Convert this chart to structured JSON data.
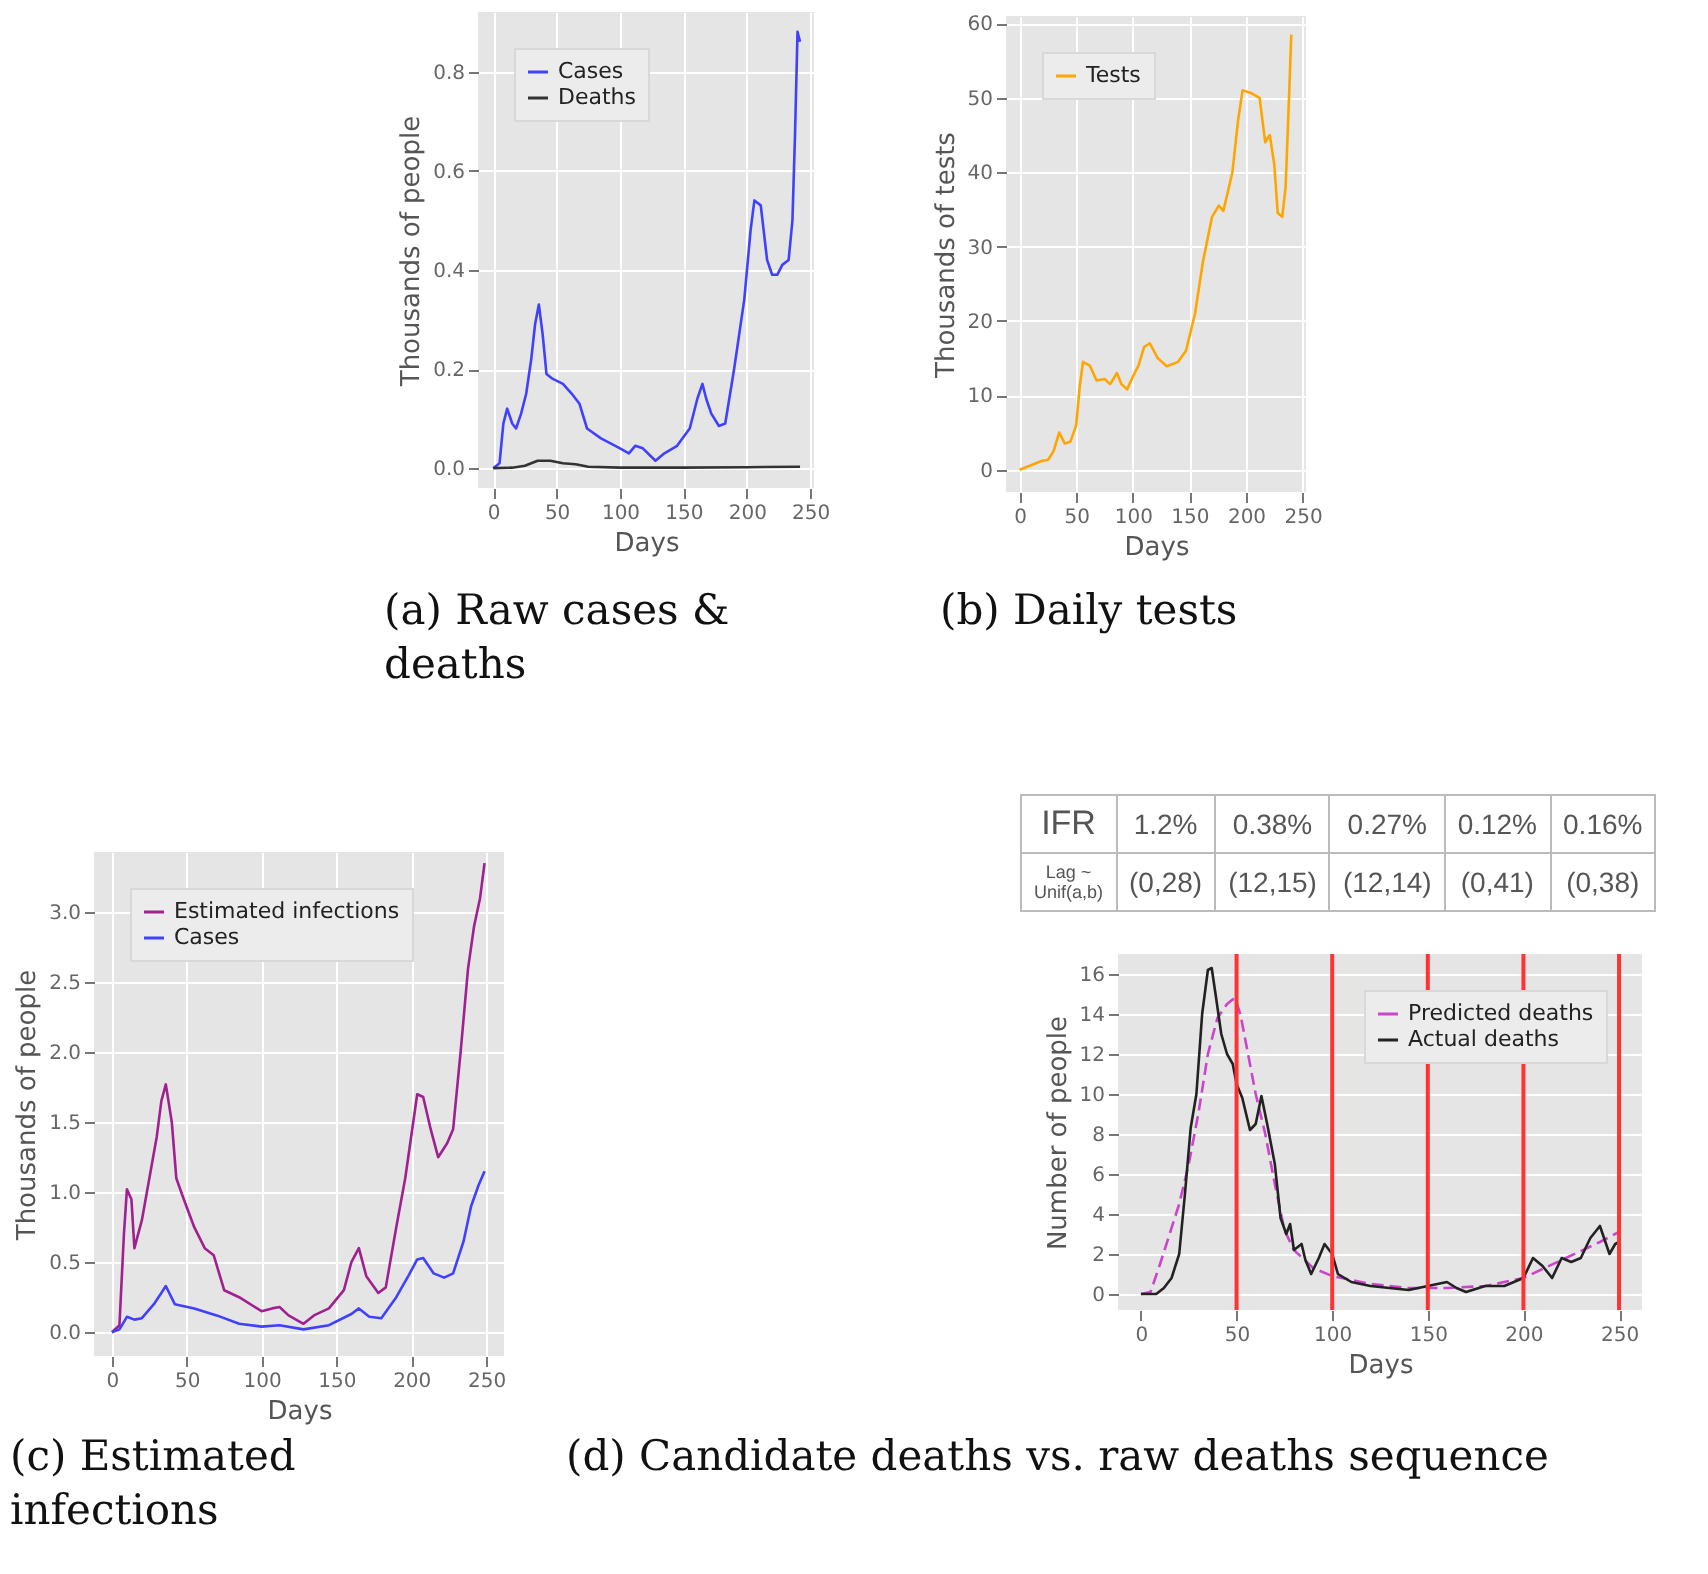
{
  "chart_data": [
    {
      "type": "line",
      "title": "(a) Raw cases & deaths",
      "xlabel": "Days",
      "ylabel": "Thousands of people",
      "xlim": [
        -12,
        253
      ],
      "xticks": [
        0,
        50,
        100,
        150,
        200,
        250
      ],
      "ylim": [
        -0.04,
        0.92
      ],
      "yticks": [
        {
          "value": 0,
          "label": "0.0"
        },
        {
          "value": 0.2,
          "label": "0.2"
        },
        {
          "value": 0.4,
          "label": "0.4"
        },
        {
          "value": 0.6,
          "label": "0.6"
        },
        {
          "value": 0.8,
          "label": "0.8"
        }
      ],
      "grid": true,
      "legend": "top left",
      "series": [
        {
          "name": "Cases",
          "color": "#4040ff",
          "x": [
            0,
            5,
            8,
            11,
            15,
            18,
            22,
            26,
            30,
            33,
            36,
            39,
            42,
            47,
            55,
            62,
            68,
            74,
            85,
            100,
            107,
            112,
            118,
            128,
            135,
            145,
            155,
            161,
            165,
            168,
            172,
            178,
            183,
            190,
            198,
            203,
            206,
            211,
            216,
            220,
            224,
            228,
            233,
            236,
            238,
            240,
            242
          ],
          "values": [
            0,
            0.01,
            0.09,
            0.12,
            0.09,
            0.08,
            0.11,
            0.15,
            0.22,
            0.29,
            0.33,
            0.27,
            0.19,
            0.18,
            0.17,
            0.15,
            0.13,
            0.08,
            0.06,
            0.04,
            0.03,
            0.045,
            0.04,
            0.015,
            0.03,
            0.045,
            0.08,
            0.14,
            0.17,
            0.14,
            0.11,
            0.085,
            0.09,
            0.2,
            0.34,
            0.48,
            0.54,
            0.53,
            0.42,
            0.39,
            0.39,
            0.41,
            0.42,
            0.5,
            0.67,
            0.88,
            0.86
          ]
        },
        {
          "name": "Deaths",
          "color": "#333333",
          "x": [
            0,
            15,
            25,
            35,
            45,
            55,
            65,
            75,
            100,
            150,
            200,
            242
          ],
          "values": [
            0,
            0.001,
            0.005,
            0.015,
            0.015,
            0.01,
            0.008,
            0.003,
            0.001,
            0.001,
            0.002,
            0.003
          ]
        }
      ]
    },
    {
      "type": "line",
      "title": "(b) Daily tests",
      "xlabel": "Days",
      "ylabel": "Thousands of tests",
      "xlim": [
        -12,
        253
      ],
      "xticks": [
        0,
        50,
        100,
        150,
        200,
        250
      ],
      "ylim": [
        -3,
        61
      ],
      "yticks": [
        0,
        10,
        20,
        30,
        40,
        50,
        60
      ],
      "grid": true,
      "legend": "top left",
      "series": [
        {
          "name": "Tests",
          "color": "#ffa500",
          "x": [
            0,
            10,
            20,
            25,
            30,
            35,
            40,
            45,
            50,
            53,
            56,
            62,
            68,
            75,
            80,
            86,
            90,
            95,
            100,
            105,
            110,
            115,
            122,
            130,
            140,
            147,
            155,
            162,
            170,
            176,
            180,
            188,
            193,
            197,
            205,
            212,
            217,
            221,
            225,
            228,
            232,
            235,
            238,
            240
          ],
          "values": [
            0,
            0.6,
            1.2,
            1.3,
            2.5,
            5,
            3.5,
            3.8,
            6,
            11,
            14.5,
            14,
            12,
            12.2,
            11.5,
            13,
            11.5,
            10.8,
            12.5,
            14,
            16.5,
            17,
            15,
            13.9,
            14.5,
            16,
            21,
            28,
            34,
            35.5,
            34.8,
            40,
            47,
            51,
            50.6,
            50,
            44,
            45,
            41,
            34.5,
            34,
            38,
            50,
            58.5
          ]
        }
      ]
    },
    {
      "type": "line",
      "title": "(c) Estimated infections",
      "xlabel": "Days",
      "ylabel": "Thousands of people",
      "xlim": [
        -12,
        262
      ],
      "xticks": [
        0,
        50,
        100,
        150,
        200,
        250
      ],
      "ylim": [
        -0.17,
        3.43
      ],
      "yticks": [
        {
          "value": 0,
          "label": "0.0"
        },
        {
          "value": 0.5,
          "label": "0.5"
        },
        {
          "value": 1,
          "label": "1.0"
        },
        {
          "value": 1.5,
          "label": "1.5"
        },
        {
          "value": 2,
          "label": "2.0"
        },
        {
          "value": 2.5,
          "label": "2.5"
        },
        {
          "value": 3,
          "label": "3.0"
        }
      ],
      "grid": true,
      "legend": "top left",
      "series": [
        {
          "name": "Estimated infections",
          "color": "#a0208f",
          "x": [
            0,
            5,
            8,
            10,
            13,
            15,
            20,
            25,
            30,
            33,
            36,
            40,
            43,
            48,
            55,
            62,
            68,
            75,
            85,
            100,
            107,
            112,
            118,
            128,
            135,
            145,
            155,
            160,
            165,
            170,
            178,
            183,
            190,
            196,
            200,
            204,
            208,
            213,
            218,
            224,
            228,
            233,
            238,
            242,
            246,
            249
          ],
          "values": [
            0,
            0.05,
            0.7,
            1.02,
            0.95,
            0.6,
            0.8,
            1.1,
            1.4,
            1.65,
            1.77,
            1.5,
            1.1,
            0.95,
            0.75,
            0.6,
            0.55,
            0.3,
            0.25,
            0.15,
            0.17,
            0.18,
            0.12,
            0.06,
            0.12,
            0.17,
            0.3,
            0.5,
            0.6,
            0.4,
            0.28,
            0.32,
            0.75,
            1.1,
            1.4,
            1.7,
            1.68,
            1.45,
            1.25,
            1.35,
            1.45,
            2.0,
            2.6,
            2.9,
            3.1,
            3.35
          ]
        },
        {
          "name": "Cases",
          "color": "#4040ff",
          "x": [
            0,
            5,
            10,
            15,
            20,
            28,
            33,
            36,
            42,
            55,
            70,
            85,
            100,
            112,
            128,
            145,
            160,
            165,
            172,
            180,
            190,
            198,
            204,
            208,
            215,
            222,
            228,
            235,
            240,
            245,
            249
          ],
          "values": [
            0,
            0.02,
            0.11,
            0.09,
            0.1,
            0.2,
            0.28,
            0.33,
            0.2,
            0.17,
            0.12,
            0.06,
            0.04,
            0.05,
            0.02,
            0.05,
            0.13,
            0.17,
            0.11,
            0.1,
            0.25,
            0.4,
            0.52,
            0.53,
            0.42,
            0.39,
            0.42,
            0.65,
            0.9,
            1.05,
            1.15
          ]
        }
      ]
    },
    {
      "type": "line",
      "title": "(d) Candidate deaths vs. raw deaths sequence",
      "xlabel": "Days",
      "ylabel": "Number of people",
      "xlim": [
        -12,
        262
      ],
      "xticks": [
        0,
        50,
        100,
        150,
        200,
        250
      ],
      "ylim": [
        -0.8,
        17
      ],
      "yticks": [
        0,
        2,
        4,
        6,
        8,
        10,
        12,
        14,
        16
      ],
      "grid": "y",
      "legend": "top right",
      "annotations": [
        "IFR",
        "1.2%",
        "0.38%",
        "0.27%",
        "0.12%",
        "0.16%",
        "Lag ~ Unif(a,b)",
        "(0,28)",
        "(12,15)",
        "(12,14)",
        "(0,41)",
        "(0,38)"
      ],
      "ref_lines": [
        {
          "axis": "x",
          "value": 50,
          "color": "#ff3333"
        },
        {
          "axis": "x",
          "value": 100,
          "color": "#ff3333"
        },
        {
          "axis": "x",
          "value": 150,
          "color": "#ff3333"
        },
        {
          "axis": "x",
          "value": 200,
          "color": "#ff3333"
        },
        {
          "axis": "x",
          "value": 250,
          "color": "#ff3333"
        }
      ],
      "series": [
        {
          "name": "Predicted deaths",
          "color": "#cc44cc",
          "line_style": "dashed",
          "x": [
            0,
            5,
            10,
            15,
            20,
            25,
            30,
            35,
            40,
            45,
            49,
            52,
            55,
            60,
            65,
            70,
            75,
            80,
            90,
            100,
            110,
            120,
            140,
            160,
            180,
            200,
            220,
            240,
            250
          ],
          "values": [
            0,
            0.1,
            1.5,
            3,
            4.5,
            6.5,
            9,
            12,
            13.8,
            14.5,
            14.8,
            14,
            12.5,
            10,
            8,
            5.5,
            3.2,
            2.2,
            1.3,
            0.9,
            0.7,
            0.5,
            0.3,
            0.3,
            0.4,
            0.8,
            1.7,
            2.6,
            3.1
          ]
        },
        {
          "name": "Actual deaths",
          "color": "#222222",
          "x": [
            0,
            8,
            12,
            16,
            20,
            23,
            26,
            29,
            32,
            35,
            37,
            39,
            42,
            45,
            48,
            50,
            53,
            57,
            60,
            63,
            66,
            70,
            73,
            76,
            78,
            80,
            84,
            86,
            89,
            93,
            96,
            100,
            103,
            110,
            120,
            130,
            140,
            150,
            160,
            165,
            170,
            180,
            190,
            200,
            205,
            210,
            215,
            220,
            225,
            230,
            235,
            240,
            245,
            248,
            250
          ],
          "values": [
            0,
            0,
            0.3,
            0.8,
            2,
            5,
            8.3,
            10,
            14,
            16.2,
            16.3,
            15,
            13,
            12,
            11.5,
            10.5,
            9.8,
            8.2,
            8.5,
            9.9,
            8.5,
            6.5,
            3.8,
            3,
            3.5,
            2.2,
            2.5,
            1.7,
            1,
            1.8,
            2.5,
            2,
            1,
            0.6,
            0.4,
            0.3,
            0.2,
            0.4,
            0.6,
            0.3,
            0.1,
            0.4,
            0.4,
            0.8,
            1.8,
            1.4,
            0.8,
            1.8,
            1.6,
            1.8,
            2.8,
            3.4,
            2,
            2.5,
            2.6
          ]
        }
      ]
    }
  ]
}
